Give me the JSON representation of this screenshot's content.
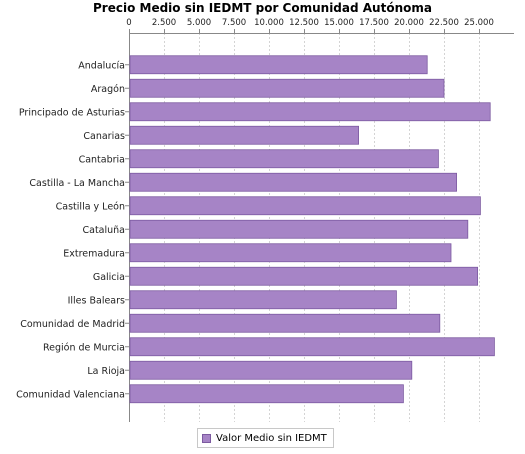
{
  "chart_data": {
    "type": "bar",
    "orientation": "horizontal",
    "title": "Precio Medio sin IEDMT por Comunidad Autónoma",
    "xlabel": "",
    "ylabel": "",
    "xlim": [
      0,
      27500
    ],
    "x_ticks": [
      0,
      2500,
      5000,
      7500,
      10000,
      12500,
      15000,
      17500,
      20000,
      22500,
      25000
    ],
    "x_tick_labels": [
      "0",
      "2.500",
      "5.000",
      "7.500",
      "10.000",
      "12.500",
      "15.000",
      "17.500",
      "20.000",
      "22.500",
      "25.000"
    ],
    "x_axis_position": "top",
    "grid": true,
    "legend_position": "bottom-center",
    "categories": [
      "Andalucía",
      "Aragón",
      "Principado de Asturias",
      "Canarias",
      "Cantabria",
      "Castilla - La Mancha",
      "Castilla y León",
      "Cataluña",
      "Extremadura",
      "Galicia",
      "Illes Balears",
      "Comunidad de Madrid",
      "Región de Murcia",
      "La Rioja",
      "Comunidad Valenciana"
    ],
    "series": [
      {
        "name": "Valor Medio sin IEDMT",
        "color": "#a684c6",
        "values": [
          21300,
          22500,
          25800,
          16400,
          22100,
          23400,
          25100,
          24200,
          23000,
          24900,
          19100,
          22200,
          26100,
          20200,
          19600
        ]
      }
    ]
  }
}
